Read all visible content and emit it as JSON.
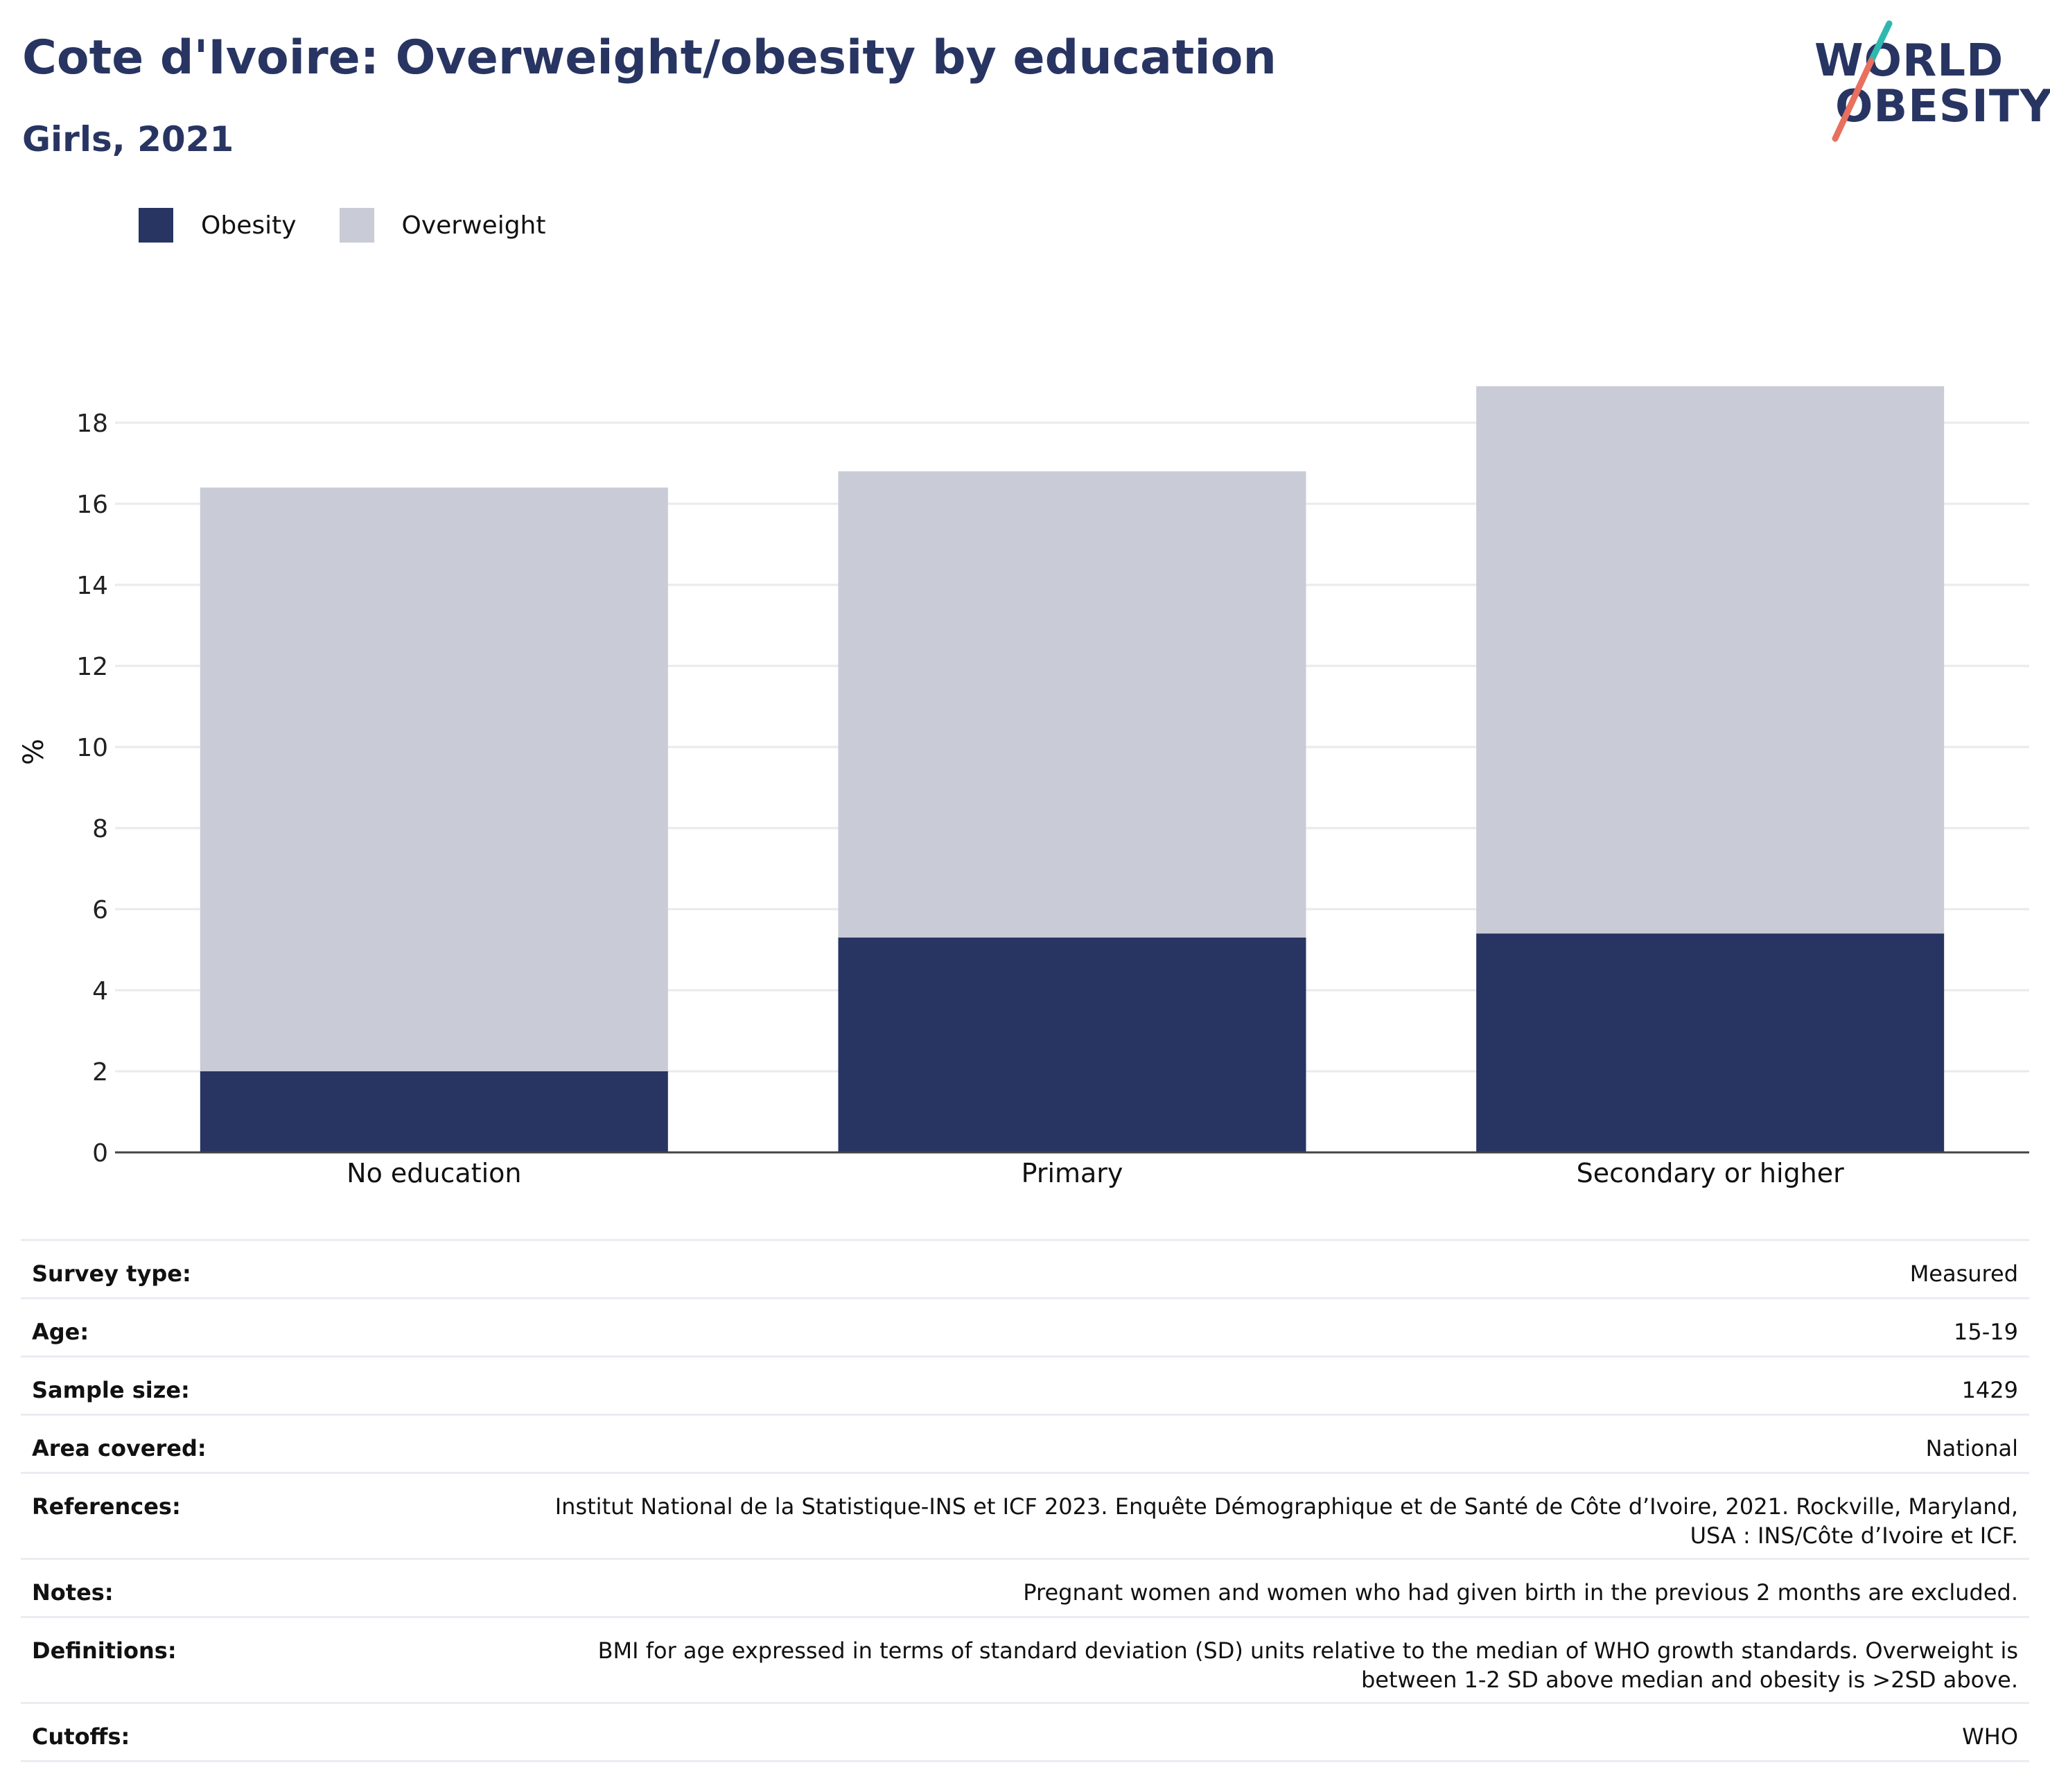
{
  "header": {
    "title": "Cote d'Ivoire: Overweight/obesity by education",
    "subtitle": "Girls, 2021"
  },
  "logo": {
    "line1": "WORLD",
    "line2": "OBESITY"
  },
  "legend": [
    {
      "label": "Obesity",
      "color": "#283562"
    },
    {
      "label": "Overweight",
      "color": "#c9cbd6"
    }
  ],
  "chart_data": {
    "type": "bar",
    "stacked": true,
    "categories": [
      "No education",
      "Primary",
      "Secondary or higher"
    ],
    "series": [
      {
        "name": "Obesity",
        "color": "#283562",
        "values": [
          2.0,
          5.3,
          5.4
        ]
      },
      {
        "name": "Overweight",
        "color": "#c9cbd6",
        "values": [
          14.4,
          11.5,
          13.5
        ]
      }
    ],
    "ylabel": "%",
    "ylim": [
      0,
      19
    ],
    "yticks": [
      0,
      2,
      4,
      6,
      8,
      10,
      12,
      14,
      16,
      18
    ],
    "grid": true,
    "legend_position": "top-left"
  },
  "info": [
    {
      "label": "Survey type:",
      "value": "Measured"
    },
    {
      "label": "Age:",
      "value": "15-19"
    },
    {
      "label": "Sample size:",
      "value": "1429"
    },
    {
      "label": "Area covered:",
      "value": "National"
    },
    {
      "label": "References:",
      "value": "Institut National de la Statistique-INS et ICF 2023. Enquête Démographique et de Santé de Côte d’Ivoire, 2021. Rockville, Maryland, USA : INS/Côte d’Ivoire et ICF."
    },
    {
      "label": "Notes:",
      "value": "Pregnant women and women who had given birth in the previous 2 months are excluded."
    },
    {
      "label": "Definitions:",
      "value": "BMI for age expressed in terms of standard deviation (SD) units relative to the median of WHO growth standards. Overweight is between 1-2 SD above median and obesity is >2SD above."
    },
    {
      "label": "Cutoffs:",
      "value": "WHO"
    }
  ]
}
